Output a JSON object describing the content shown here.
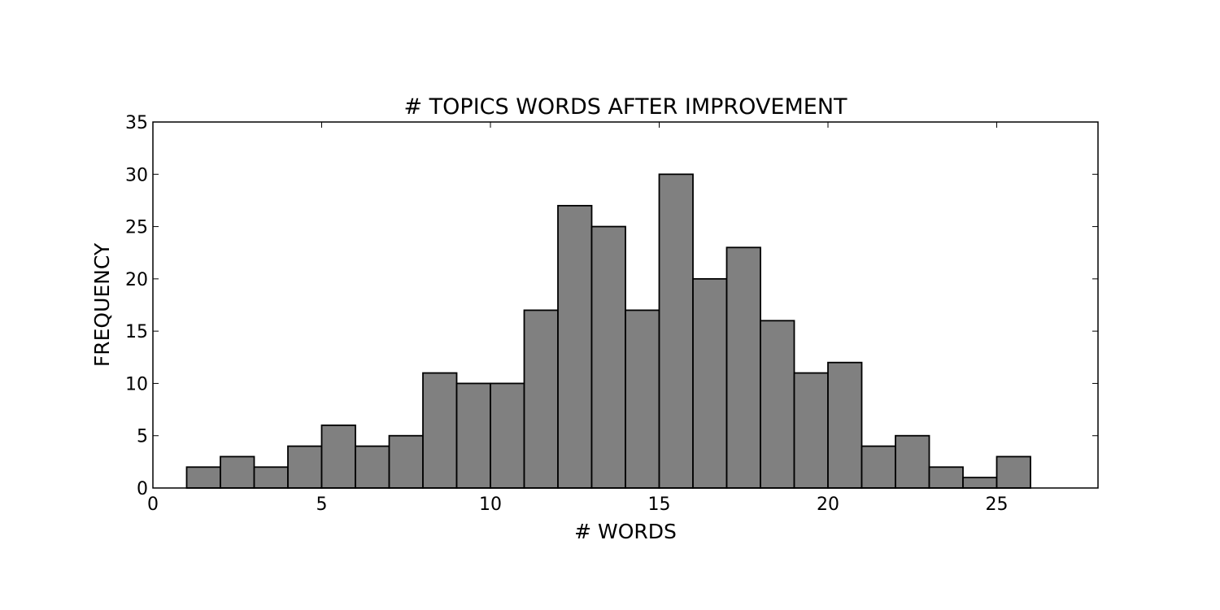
{
  "chart_data": {
    "type": "bar",
    "title": "# TOPICS WORDS AFTER IMPROVEMENT",
    "xlabel": "# WORDS",
    "ylabel": "FREQUENCY",
    "xlim": [
      0,
      28
    ],
    "ylim": [
      0,
      35
    ],
    "xticks": [
      0,
      5,
      10,
      15,
      20,
      25
    ],
    "yticks": [
      0,
      5,
      10,
      15,
      20,
      25,
      30,
      35
    ],
    "bin_edges": [
      1,
      2,
      3,
      4,
      5,
      6,
      7,
      8,
      9,
      10,
      11,
      12,
      13,
      14,
      15,
      16,
      17,
      18,
      19,
      20,
      21,
      22,
      23,
      24,
      25,
      26
    ],
    "values": [
      2,
      3,
      2,
      4,
      6,
      4,
      5,
      11,
      10,
      10,
      17,
      27,
      25,
      17,
      30,
      20,
      23,
      16,
      11,
      12,
      4,
      5,
      2,
      1,
      3
    ],
    "bar_color": "#808080",
    "edge_color": "#000000",
    "grid": false,
    "legend": "none"
  }
}
